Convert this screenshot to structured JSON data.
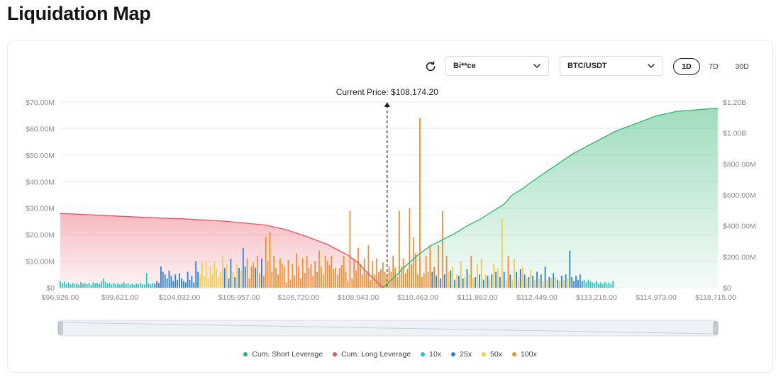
{
  "page": {
    "title": "Liquidation Map"
  },
  "toolbar": {
    "refresh_icon": "refresh-icon",
    "exchange": {
      "value": "Bi**ce"
    },
    "pair": {
      "value": "BTC/USDT"
    },
    "ranges": [
      {
        "label": "1D",
        "active": true
      },
      {
        "label": "7D",
        "active": false
      },
      {
        "label": "30D",
        "active": false
      }
    ]
  },
  "chart_data": {
    "type": "bar",
    "current_price_label": "Current Price: $108,174.20",
    "x_tick_labels": [
      "$96,926.00",
      "$99,621.00",
      "$104,032.00",
      "$105,957.00",
      "$106,720.00",
      "$108,943.00",
      "$110,463.00",
      "$111,862.00",
      "$112,449.00",
      "$113,215.00",
      "$114,973.00",
      "$118,715.00"
    ],
    "y_left": {
      "ticks": [
        "$0",
        "$10.00M",
        "$20.00M",
        "$30.00M",
        "$40.00M",
        "$50.00M",
        "$60.00M",
        "$70.00M"
      ],
      "lim": [
        0,
        70
      ]
    },
    "y_right": {
      "ticks": [
        "$0",
        "$200.00M",
        "$400.00M",
        "$600.00M",
        "$800.00M",
        "$1.00B",
        "$1.20B"
      ],
      "lim": [
        0,
        1200
      ]
    },
    "colors": {
      "cum_short": "#2db36f",
      "cum_long": "#e8525f",
      "10x": "#25c7c2",
      "25x": "#2d7fd6",
      "50x": "#f2cd4d",
      "100x": "#ef8d33"
    },
    "legend": [
      {
        "key": "cum_short",
        "label": "Cum. Short Leverage"
      },
      {
        "key": "cum_long",
        "label": "Cum. Long Leverage"
      },
      {
        "key": "10x",
        "label": "10x"
      },
      {
        "key": "25x",
        "label": "25x"
      },
      {
        "key": "50x",
        "label": "50x"
      },
      {
        "key": "100x",
        "label": "100x"
      }
    ],
    "bars": {
      "unit": "M USD",
      "series_order": [
        "10x",
        "25x",
        "50x",
        "100x"
      ],
      "values": [
        [
          2.5,
          0
        ],
        [
          1.8,
          0
        ],
        [
          2.3,
          0
        ],
        [
          1.5,
          0
        ],
        [
          2,
          0
        ],
        [
          1.2,
          0
        ],
        [
          1.8,
          0
        ],
        [
          1.4,
          0
        ],
        [
          1.6,
          0
        ],
        [
          1.2,
          0
        ],
        [
          2.1,
          0
        ],
        [
          1.5,
          0
        ],
        [
          1.8,
          0
        ],
        [
          1.3,
          0
        ],
        [
          1.7,
          0
        ],
        [
          1.1,
          0
        ],
        [
          2,
          0
        ],
        [
          1.6,
          0
        ],
        [
          1.9,
          0
        ],
        [
          1.4,
          0
        ],
        [
          2.4,
          0
        ],
        [
          3.5,
          0
        ],
        [
          2.2,
          0
        ],
        [
          1.5,
          0
        ],
        [
          1.9,
          0
        ],
        [
          1.2,
          0
        ],
        [
          1.8,
          0
        ],
        [
          1.3,
          0
        ],
        [
          1.6,
          0
        ],
        [
          1.2,
          0
        ],
        [
          1.5,
          0
        ],
        [
          2,
          0
        ],
        [
          1.4,
          0
        ],
        [
          1.7,
          0
        ],
        [
          1.2,
          0
        ],
        [
          1.5,
          0
        ],
        [
          1.1,
          0
        ],
        [
          1.6,
          0
        ],
        [
          1.3,
          0
        ],
        [
          1.8,
          0
        ],
        [
          1.4,
          0
        ],
        [
          1.2,
          0
        ],
        [
          5.5,
          0
        ],
        [
          1.6,
          0
        ],
        [
          1.3,
          0
        ],
        [
          1.8,
          0
        ],
        [
          1.5,
          1
        ],
        [
          2.5,
          1
        ],
        [
          1.8,
          1
        ],
        [
          8,
          1
        ],
        [
          6,
          1
        ],
        [
          5,
          1
        ],
        [
          3.5,
          1
        ],
        [
          6.5,
          1
        ],
        [
          4.5,
          1
        ],
        [
          2.5,
          1
        ],
        [
          5,
          1
        ],
        [
          3,
          1
        ],
        [
          5.5,
          1
        ],
        [
          3.5,
          1
        ],
        [
          2.5,
          1
        ],
        [
          2,
          1
        ],
        [
          6,
          1
        ],
        [
          3,
          1
        ],
        [
          4.5,
          1
        ],
        [
          2,
          1
        ],
        [
          10,
          1
        ],
        [
          6,
          1
        ],
        [
          5,
          2
        ],
        [
          9.5,
          2
        ],
        [
          4.5,
          2
        ],
        [
          10,
          2
        ],
        [
          3.5,
          2
        ],
        [
          8,
          2
        ],
        [
          5,
          2
        ],
        [
          10,
          2
        ],
        [
          7,
          2
        ],
        [
          4,
          2
        ],
        [
          6,
          2
        ],
        [
          12,
          2
        ],
        [
          7.5,
          1
        ],
        [
          9,
          2
        ],
        [
          3.5,
          1
        ],
        [
          11,
          1
        ],
        [
          6,
          2
        ],
        [
          4,
          1
        ],
        [
          9,
          2
        ],
        [
          7.5,
          1
        ],
        [
          6.5,
          2
        ],
        [
          15,
          1
        ],
        [
          8,
          1
        ],
        [
          11,
          3
        ],
        [
          3.5,
          3
        ],
        [
          8,
          3
        ],
        [
          9.5,
          3
        ],
        [
          7.5,
          1
        ],
        [
          12,
          3
        ],
        [
          5.5,
          3
        ],
        [
          11,
          1
        ],
        [
          4.5,
          3
        ],
        [
          19,
          3
        ],
        [
          10,
          3
        ],
        [
          21,
          3
        ],
        [
          6,
          3
        ],
        [
          12,
          3
        ],
        [
          7.5,
          3
        ],
        [
          5,
          3
        ],
        [
          11,
          3
        ],
        [
          9,
          3
        ],
        [
          8,
          3
        ],
        [
          2,
          3
        ],
        [
          10.5,
          3
        ],
        [
          3,
          3
        ],
        [
          9,
          3
        ],
        [
          4.5,
          3
        ],
        [
          13,
          3
        ],
        [
          8,
          3
        ],
        [
          3.5,
          3
        ],
        [
          11,
          3
        ],
        [
          5.5,
          3
        ],
        [
          12,
          3
        ],
        [
          7.5,
          3
        ],
        [
          9,
          3
        ],
        [
          4.5,
          3
        ],
        [
          10,
          3
        ],
        [
          6,
          3
        ],
        [
          14,
          3
        ],
        [
          8,
          3
        ],
        [
          5,
          3
        ],
        [
          12,
          3
        ],
        [
          10,
          3
        ],
        [
          8.5,
          3
        ],
        [
          12,
          3
        ],
        [
          7,
          3
        ],
        [
          7.5,
          3
        ],
        [
          5,
          3
        ],
        [
          7.5,
          3
        ],
        [
          8.5,
          3
        ],
        [
          12,
          3
        ],
        [
          6,
          3
        ],
        [
          2.5,
          3
        ],
        [
          13.5,
          3
        ],
        [
          3.5,
          3
        ],
        [
          11,
          3
        ],
        [
          6.5,
          3
        ],
        [
          15,
          3
        ],
        [
          9,
          3
        ],
        [
          5,
          3
        ],
        [
          11,
          3
        ],
        [
          5.5,
          3
        ],
        [
          16,
          3
        ],
        [
          3,
          3
        ],
        [
          10,
          3
        ],
        [
          5,
          3
        ],
        [
          11,
          3
        ],
        [
          6,
          3
        ],
        [
          7,
          3
        ],
        [
          9.5,
          3
        ],
        [
          6,
          3
        ],
        [
          4.5,
          3
        ],
        [
          8,
          3
        ],
        [
          6,
          3
        ],
        [
          12,
          3
        ],
        [
          7.5,
          3
        ],
        [
          4,
          3
        ],
        [
          29,
          3
        ],
        [
          8,
          3
        ],
        [
          11,
          3
        ],
        [
          5.5,
          3
        ],
        [
          7,
          3
        ],
        [
          10,
          3
        ],
        [
          9,
          3
        ],
        [
          19,
          3
        ],
        [
          13,
          3
        ],
        [
          5,
          3
        ],
        [
          7.5,
          3
        ],
        [
          4,
          3
        ],
        [
          5.5,
          3
        ],
        [
          12,
          3
        ],
        [
          6,
          3
        ],
        [
          16,
          3
        ],
        [
          6,
          1
        ],
        [
          8,
          3
        ],
        [
          4.5,
          1
        ],
        [
          16,
          3
        ],
        [
          3.5,
          1
        ],
        [
          7.5,
          3
        ],
        [
          5,
          1
        ],
        [
          12,
          3
        ],
        [
          6,
          2
        ],
        [
          6.5,
          1
        ],
        [
          8,
          2
        ],
        [
          3,
          1
        ],
        [
          5,
          2
        ],
        [
          4.5,
          1
        ],
        [
          10,
          2
        ],
        [
          3.5,
          1
        ],
        [
          4,
          2
        ],
        [
          7,
          1
        ],
        [
          5,
          2
        ],
        [
          4.5,
          1
        ],
        [
          3.5,
          2
        ],
        [
          4,
          1
        ],
        [
          9,
          2
        ],
        [
          5,
          1
        ],
        [
          11,
          2
        ],
        [
          3,
          1
        ],
        [
          5,
          2
        ],
        [
          4.5,
          1
        ],
        [
          3,
          2
        ],
        [
          5,
          1
        ],
        [
          9,
          2
        ],
        [
          6,
          1
        ],
        [
          7.5,
          2
        ],
        [
          4,
          1
        ],
        [
          13,
          3
        ],
        [
          6,
          1
        ],
        [
          3,
          2
        ],
        [
          12,
          3
        ],
        [
          5,
          1
        ],
        [
          3,
          2
        ],
        [
          11,
          2
        ],
        [
          6,
          1
        ],
        [
          4,
          2
        ],
        [
          7,
          1
        ],
        [
          8,
          2
        ],
        [
          5,
          1
        ],
        [
          3.5,
          2
        ],
        [
          4,
          1
        ],
        [
          7,
          2
        ],
        [
          4.5,
          1
        ],
        [
          3,
          2
        ],
        [
          6,
          1
        ],
        [
          3.5,
          2
        ],
        [
          5,
          1
        ],
        [
          2.5,
          2
        ],
        [
          8,
          1
        ],
        [
          3,
          2
        ],
        [
          4,
          1
        ],
        [
          3.5,
          2
        ],
        [
          5.5,
          1
        ],
        [
          4,
          2
        ],
        [
          3,
          1
        ],
        [
          2.5,
          2
        ],
        [
          4.5,
          1
        ],
        [
          3,
          2
        ],
        [
          5,
          1
        ],
        [
          3.5,
          2
        ],
        [
          14,
          1
        ],
        [
          4,
          1
        ],
        [
          2.5,
          1
        ],
        [
          4.5,
          1
        ],
        [
          3,
          1
        ],
        [
          5,
          1
        ],
        [
          2.5,
          1
        ],
        [
          3,
          0
        ],
        [
          2,
          0
        ],
        [
          3,
          0
        ],
        [
          2.5,
          0
        ],
        [
          2,
          0
        ],
        [
          1.8,
          0
        ],
        [
          2.5,
          0
        ],
        [
          1.5,
          0
        ],
        [
          2,
          0
        ],
        [
          1.4,
          0
        ],
        [
          2.2,
          0
        ],
        [
          1.6,
          0
        ],
        [
          2,
          0
        ],
        [
          1.5,
          0
        ],
        [
          2.5,
          0
        ]
      ],
      "overrides": {
        "170": [
          30,
          3
        ],
        "175": [
          64,
          3
        ],
        "186": [
          29,
          3
        ],
        "200": [
          12,
          3
        ],
        "141": [
          29,
          3
        ],
        "215": [
          26,
          2
        ]
      }
    },
    "cum_long": {
      "unit": "M USD",
      "points": [
        [
          0,
          480
        ],
        [
          20,
          468
        ],
        [
          40,
          455
        ],
        [
          60,
          445
        ],
        [
          80,
          430
        ],
        [
          100,
          405
        ],
        [
          110,
          375
        ],
        [
          120,
          330
        ],
        [
          130,
          280
        ],
        [
          140,
          210
        ],
        [
          145,
          160
        ],
        [
          150,
          90
        ],
        [
          154,
          40
        ],
        [
          157,
          0
        ]
      ]
    },
    "cum_short": {
      "unit": "M USD",
      "points": [
        [
          157,
          0
        ],
        [
          162,
          60
        ],
        [
          168,
          140
        ],
        [
          174,
          210
        ],
        [
          180,
          270
        ],
        [
          186,
          310
        ],
        [
          192,
          350
        ],
        [
          198,
          400
        ],
        [
          204,
          440
        ],
        [
          210,
          490
        ],
        [
          216,
          540
        ],
        [
          220,
          600
        ],
        [
          225,
          640
        ],
        [
          230,
          690
        ],
        [
          240,
          780
        ],
        [
          250,
          870
        ],
        [
          260,
          940
        ],
        [
          270,
          1010
        ],
        [
          280,
          1060
        ],
        [
          290,
          1110
        ],
        [
          300,
          1140
        ],
        [
          310,
          1150
        ],
        [
          320,
          1160
        ]
      ]
    },
    "x_bar_count": 320
  },
  "zoom": {
    "label": "zoom-range-slider"
  }
}
